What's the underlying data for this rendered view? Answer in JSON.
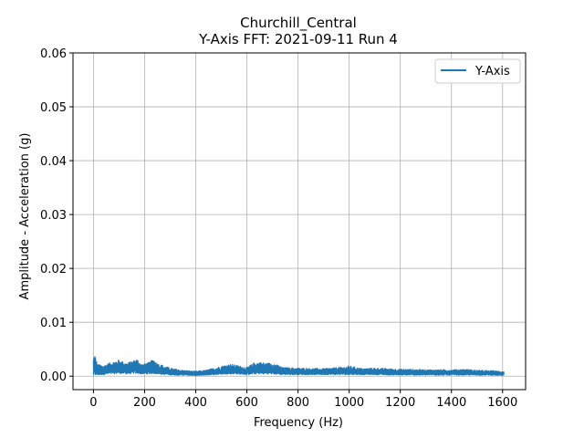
{
  "chart_data": {
    "type": "line",
    "title": "Churchill_Central",
    "subtitle": "Y-Axis FFT: 2021-09-11 Run 4",
    "xlabel": "Frequency (Hz)",
    "ylabel": "Amplitude - Acceleration (g)",
    "xlim": [
      -80,
      1690
    ],
    "ylim": [
      -0.0025,
      0.06
    ],
    "xticks": [
      0,
      200,
      400,
      600,
      800,
      1000,
      1200,
      1400,
      1600
    ],
    "yticks": [
      0.0,
      0.01,
      0.02,
      0.03,
      0.04,
      0.05,
      0.06
    ],
    "ytick_labels": [
      "0.00",
      "0.01",
      "0.02",
      "0.03",
      "0.04",
      "0.05",
      "0.06"
    ],
    "grid": true,
    "legend": {
      "position": "top-right",
      "entries": [
        "Y-Axis"
      ]
    },
    "series": [
      {
        "name": "Y-Axis",
        "color": "#1f77b4",
        "x_range": [
          0,
          1605
        ],
        "envelope": {
          "x": [
            0,
            5,
            15,
            40,
            70,
            100,
            130,
            160,
            170,
            190,
            220,
            235,
            250,
            280,
            310,
            350,
            400,
            440,
            480,
            520,
            540,
            560,
            600,
            630,
            650,
            680,
            700,
            740,
            800,
            900,
            980,
            1000,
            1050,
            1100,
            1200,
            1300,
            1400,
            1450,
            1500,
            1560,
            1605
          ],
          "upper": [
            0.0035,
            0.0042,
            0.0022,
            0.002,
            0.0026,
            0.003,
            0.0024,
            0.003,
            0.0032,
            0.0022,
            0.0026,
            0.0032,
            0.0024,
            0.0018,
            0.0014,
            0.0011,
            0.0009,
            0.0011,
            0.0016,
            0.0021,
            0.0022,
            0.002,
            0.0016,
            0.0025,
            0.0026,
            0.0024,
            0.0025,
            0.0016,
            0.0015,
            0.0014,
            0.0017,
            0.0019,
            0.0014,
            0.0015,
            0.0013,
            0.0012,
            0.0012,
            0.0013,
            0.0011,
            0.001,
            0.0009
          ],
          "lower": [
            0.0,
            0.0001,
            0.0002,
            0.0003,
            0.0004,
            0.0005,
            0.0004,
            0.0005,
            0.0005,
            0.0004,
            0.0004,
            0.0005,
            0.0004,
            0.0003,
            0.0002,
            0.0002,
            0.0001,
            0.0002,
            0.0003,
            0.0004,
            0.0004,
            0.0004,
            0.0003,
            0.0004,
            0.0004,
            0.0004,
            0.0004,
            0.0003,
            0.0003,
            0.0003,
            0.0003,
            0.0003,
            0.0003,
            0.0003,
            0.0002,
            0.0002,
            0.0002,
            0.0002,
            0.0002,
            0.0002,
            0.0001
          ]
        }
      }
    ]
  }
}
